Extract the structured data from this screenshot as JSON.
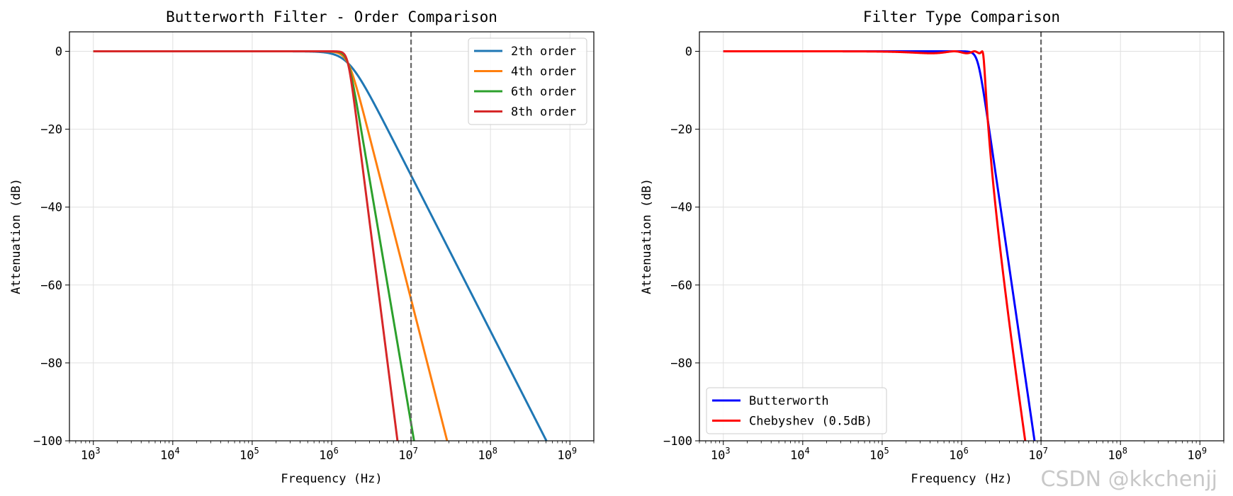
{
  "chart_data": [
    {
      "type": "line",
      "title": "Butterworth Filter - Order Comparison",
      "xlabel": "Frequency (Hz)",
      "ylabel": "Attenuation (dB)",
      "xscale": "log",
      "xlim": [
        500,
        2000000000
      ],
      "ylim": [
        -100,
        5
      ],
      "xticks": [
        1000,
        10000,
        100000,
        1000000,
        10000000,
        100000000,
        1000000000
      ],
      "xtick_labels": [
        {
          "base": "10",
          "exp": "3"
        },
        {
          "base": "10",
          "exp": "4"
        },
        {
          "base": "10",
          "exp": "5"
        },
        {
          "base": "10",
          "exp": "6"
        },
        {
          "base": "10",
          "exp": "7"
        },
        {
          "base": "10",
          "exp": "8"
        },
        {
          "base": "10",
          "exp": "9"
        }
      ],
      "yticks": [
        0,
        -20,
        -40,
        -60,
        -80,
        -100
      ],
      "ytick_labels": [
        "0",
        "−20",
        "−40",
        "−60",
        "−80",
        "−100"
      ],
      "grid": true,
      "legend_position": "top-right",
      "vline": {
        "x": 10000000,
        "color": "#666666",
        "style": "dashed"
      },
      "series": [
        {
          "name": "2th order",
          "kind": "butterworth",
          "order": 2,
          "cutoff": 1600000,
          "color": "#1f77b4",
          "x_range": [
            1000,
            1000000000
          ]
        },
        {
          "name": "4th order",
          "kind": "butterworth",
          "order": 4,
          "cutoff": 1600000,
          "color": "#ff7f0e",
          "x_range": [
            1000,
            1000000000
          ]
        },
        {
          "name": "6th order",
          "kind": "butterworth",
          "order": 6,
          "cutoff": 1600000,
          "color": "#2ca02c",
          "x_range": [
            1000,
            1000000000
          ]
        },
        {
          "name": "8th order",
          "kind": "butterworth",
          "order": 8,
          "cutoff": 1600000,
          "color": "#d62728",
          "x_range": [
            1000,
            1000000000
          ]
        }
      ]
    },
    {
      "type": "line",
      "title": "Filter Type Comparison",
      "xlabel": "Frequency (Hz)",
      "ylabel": "Attenuation (dB)",
      "xscale": "log",
      "xlim": [
        500,
        2000000000
      ],
      "ylim": [
        -100,
        5
      ],
      "xticks": [
        1000,
        10000,
        100000,
        1000000,
        10000000,
        100000000,
        1000000000
      ],
      "xtick_labels": [
        {
          "base": "10",
          "exp": "3"
        },
        {
          "base": "10",
          "exp": "4"
        },
        {
          "base": "10",
          "exp": "5"
        },
        {
          "base": "10",
          "exp": "6"
        },
        {
          "base": "10",
          "exp": "7"
        },
        {
          "base": "10",
          "exp": "8"
        },
        {
          "base": "10",
          "exp": "9"
        }
      ],
      "yticks": [
        0,
        -20,
        -40,
        -60,
        -80,
        -100
      ],
      "ytick_labels": [
        "0",
        "−20",
        "−40",
        "−60",
        "−80",
        "−100"
      ],
      "grid": true,
      "legend_position": "bottom-left",
      "vline": {
        "x": 10000000,
        "color": "#666666",
        "style": "dashed"
      },
      "series": [
        {
          "name": "Butterworth",
          "kind": "butterworth",
          "order": 7,
          "cutoff": 1600000,
          "color": "#0000ff",
          "x_range": [
            1000,
            1000000000
          ]
        },
        {
          "name": "Chebyshev (0.5dB)",
          "kind": "chebyshev",
          "order": 7,
          "ripple_db": 0.5,
          "cutoff": 1600000,
          "color": "#ff0000",
          "x_range": [
            1000,
            1000000000
          ]
        }
      ]
    }
  ],
  "watermark": "CSDN @kkchenjj"
}
